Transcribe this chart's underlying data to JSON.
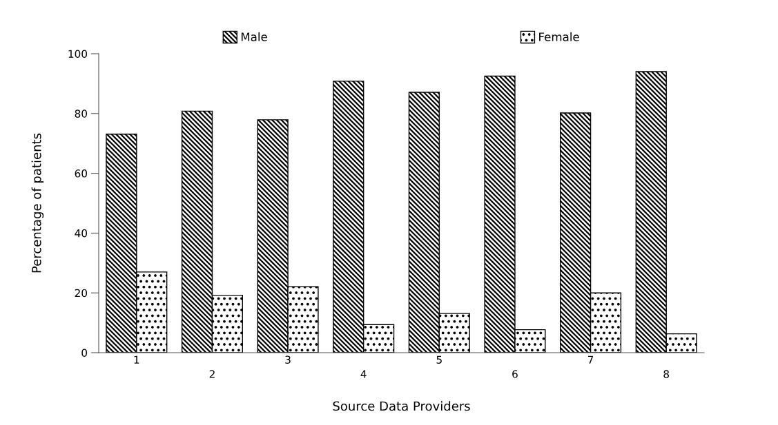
{
  "chart_data": {
    "type": "bar",
    "xlabel": "Source Data Providers",
    "ylabel": "Percentage of patients",
    "categories": [
      "1",
      "2",
      "3",
      "4",
      "5",
      "6",
      "7",
      "8"
    ],
    "series": [
      {
        "name": "Male",
        "color": "#000000",
        "values": [
          73.1,
          80.8,
          77.9,
          90.8,
          87.1,
          92.5,
          80.2,
          94.0
        ]
      },
      {
        "name": "Female",
        "color": "#000000",
        "values": [
          27.0,
          19.2,
          22.1,
          9.4,
          13.1,
          7.7,
          20.0,
          6.3
        ]
      }
    ],
    "ylim": [
      0,
      100
    ],
    "yticks": [
      0,
      20,
      40,
      60,
      80,
      100
    ],
    "grid": false,
    "legend": "top"
  }
}
